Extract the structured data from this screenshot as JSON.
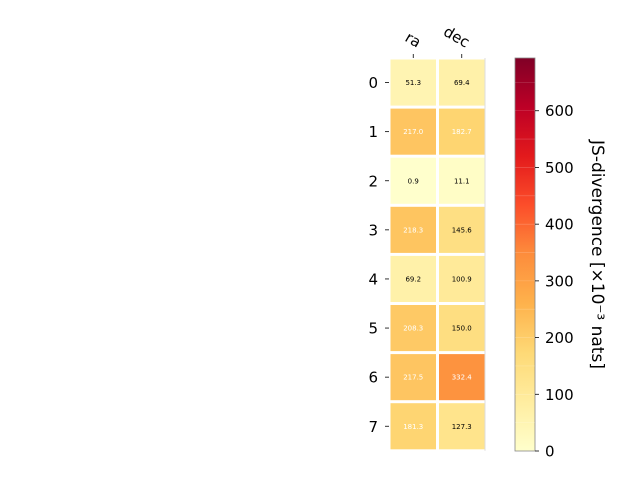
{
  "chart_data": {
    "type": "heatmap",
    "columns": [
      "ra",
      "dec"
    ],
    "rows": [
      "0",
      "1",
      "2",
      "3",
      "4",
      "5",
      "6",
      "7"
    ],
    "values": [
      [
        51.3,
        69.4
      ],
      [
        217.0,
        182.7
      ],
      [
        0.9,
        11.1
      ],
      [
        218.3,
        145.6
      ],
      [
        69.2,
        100.9
      ],
      [
        208.3,
        150.0
      ],
      [
        217.5,
        332.4
      ],
      [
        181.3,
        127.3
      ]
    ],
    "value_labels": [
      [
        "51.3",
        "69.4"
      ],
      [
        "217.0",
        "182.7"
      ],
      [
        "0.9",
        "11.1"
      ],
      [
        "218.3",
        "145.6"
      ],
      [
        "69.2",
        "100.9"
      ],
      [
        "208.3",
        "150.0"
      ],
      [
        "217.5",
        "332.4"
      ],
      [
        "181.3",
        "127.3"
      ]
    ],
    "colorbar": {
      "label": "JS-divergence [×10⁻³ nats]",
      "range": [
        0,
        693
      ],
      "ticks": [
        0,
        100,
        200,
        300,
        400,
        500,
        600
      ],
      "tick_labels": [
        "0",
        "100",
        "200",
        "300",
        "400",
        "500",
        "600"
      ],
      "colormap": "YlOrRd",
      "colormap_stops": [
        "#ffffcc",
        "#ffeda0",
        "#fed976",
        "#feb24c",
        "#fd8d3c",
        "#fc4e2a",
        "#e31a1c",
        "#bd0026",
        "#800026"
      ]
    },
    "text_colors": {
      "dark": "#000000",
      "light": "#ffffff"
    },
    "light_text_threshold": 170
  }
}
